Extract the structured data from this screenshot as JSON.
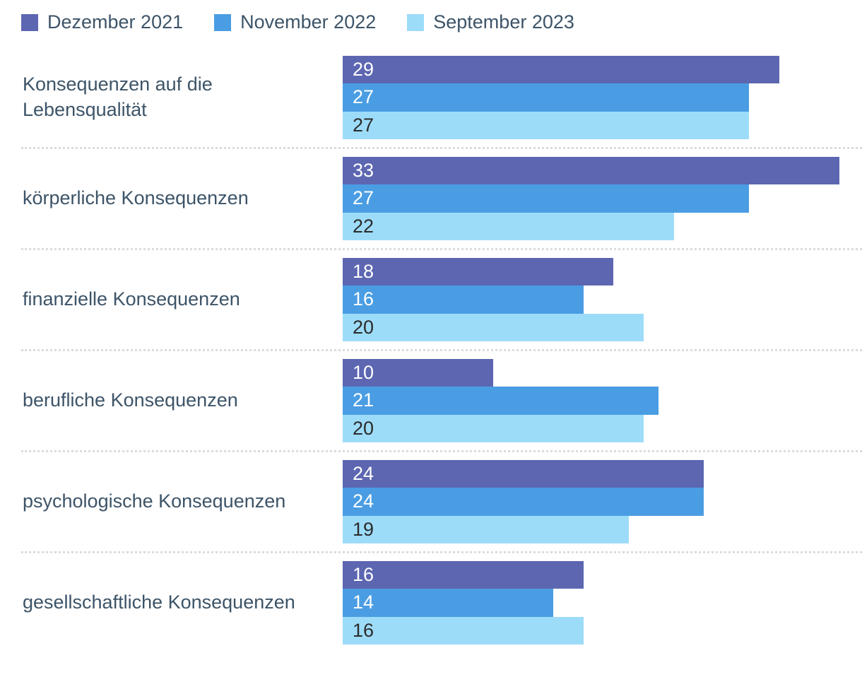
{
  "chart_data": {
    "type": "bar",
    "orientation": "horizontal",
    "title": "",
    "xlabel": "",
    "ylabel": "",
    "categories": [
      "Konsequenzen auf die Lebensqualität",
      "körperliche Konsequenzen",
      "finanzielle Konsequenzen",
      "berufliche Konsequenzen",
      "psychologische Konsequenzen",
      "gesellschaftliche Konsequenzen"
    ],
    "series": [
      {
        "name": "Dezember 2021",
        "color": "#5c66b1",
        "value_label_color": "#ffffff",
        "values": [
          29,
          33,
          18,
          10,
          24,
          16
        ]
      },
      {
        "name": "November 2022",
        "color": "#4a9de3",
        "value_label_color": "#ffffff",
        "values": [
          27,
          27,
          16,
          21,
          24,
          14
        ]
      },
      {
        "name": "September 2023",
        "color": "#9ddcf9",
        "value_label_color": "#2b2b2b",
        "values": [
          27,
          22,
          20,
          20,
          19,
          16
        ]
      }
    ],
    "xlim": [
      0,
      34.5
    ],
    "value_labels": "inside-left",
    "legend_position": "top",
    "grid": false
  },
  "colors": {
    "category_label": "#3d5468",
    "divider": "#dcdcdc",
    "background": "#ffffff"
  }
}
